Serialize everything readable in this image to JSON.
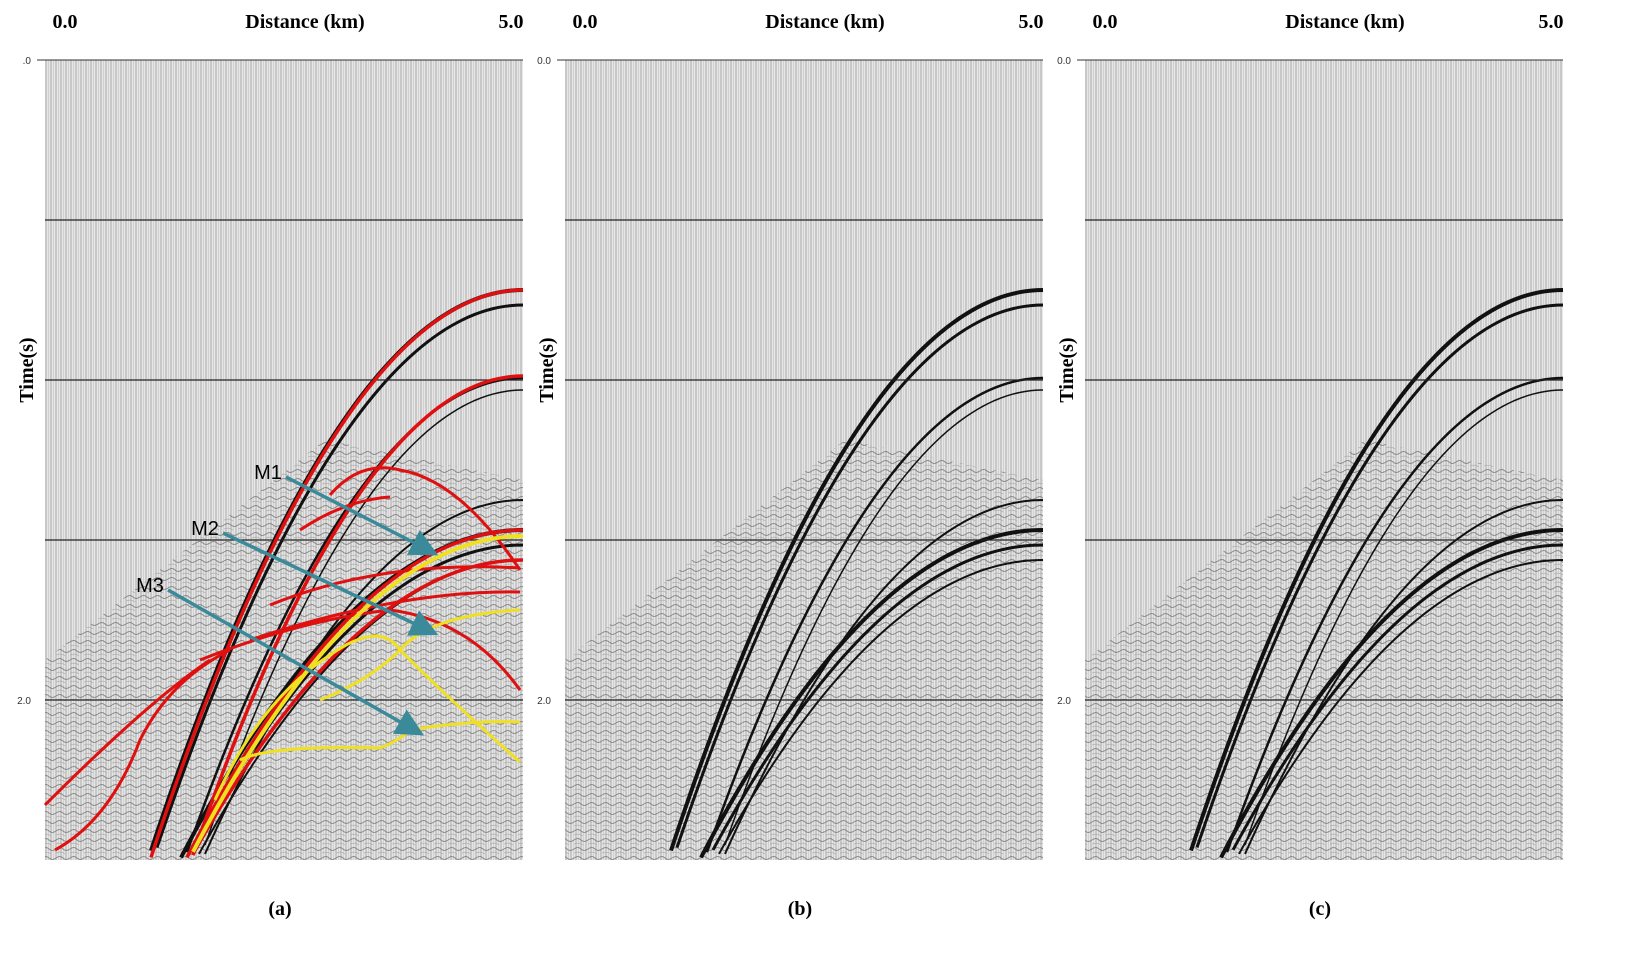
{
  "panels": [
    {
      "x_left": "0.0",
      "x_label": "Distance (km)",
      "x_right": "5.0",
      "y_label": "Time(s)",
      "y_ticks": [
        ".0",
        "2.0"
      ],
      "caption": "(a)",
      "annotations": [
        "M1",
        "M2",
        "M3"
      ]
    },
    {
      "x_left": "0.0",
      "x_label": "Distance (km)",
      "x_right": "5.0",
      "y_label": "Time(s)",
      "y_ticks": [
        "0.0",
        "2.0"
      ],
      "caption": "(b)",
      "annotations": []
    },
    {
      "x_left": "0.0",
      "x_label": "Distance (km)",
      "x_right": "5.0",
      "y_label": "Time(s)",
      "y_ticks": [
        "0.0",
        "2.0"
      ],
      "caption": "(c)",
      "annotations": []
    }
  ]
}
